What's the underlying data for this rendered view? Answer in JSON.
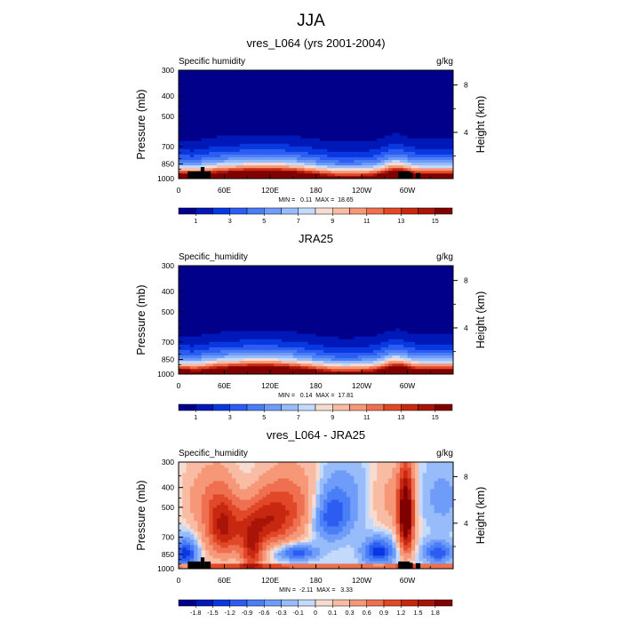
{
  "title": "JJA",
  "pressure_levels": [
    1000,
    850,
    700,
    500,
    400,
    300
  ],
  "chart_data": [
    {
      "type": "heatmap",
      "title": "vres_L064 (yrs 2001-2004)",
      "left_label": "Specific humidity",
      "right_label": "g/kg",
      "ylabel": "Pressure (mb)",
      "ylabel_right": "Height (km)",
      "xlabel": "",
      "x_ticks": [
        "0",
        "60E",
        "120E",
        "180",
        "120W",
        "60W"
      ],
      "x_tick_lon": [
        0,
        60,
        120,
        180,
        240,
        300
      ],
      "xlim": [
        0,
        360
      ],
      "y_ticks": [
        "300",
        "400",
        "500",
        "700",
        "850",
        "1000"
      ],
      "ylim": [
        1000,
        300
      ],
      "y_right_ticks": [
        "8",
        "4"
      ],
      "y_right_km": [
        8,
        4
      ],
      "stats_text": "MIN =   0.11  MAX =  18.65",
      "colorbar_labels": [
        "1",
        "3",
        "5",
        "7",
        "9",
        "11",
        "13",
        "15"
      ],
      "colorbar_levels": [
        0,
        1,
        2,
        3,
        4,
        5,
        6,
        7,
        8,
        9,
        10,
        11,
        12,
        13,
        14,
        15,
        16
      ],
      "field": "humidity",
      "value_range": [
        0.11,
        18.65
      ],
      "topography": [
        [
          12,
          29,
          922
        ],
        [
          29,
          34,
          880
        ],
        [
          34,
          42,
          922
        ],
        [
          288,
          303,
          922
        ],
        [
          303,
          307,
          935
        ],
        [
          311,
          317,
          940
        ]
      ]
    },
    {
      "type": "heatmap",
      "title": "JRA25",
      "left_label": "Specific_humidity",
      "right_label": "g/kg",
      "ylabel": "Pressure (mb)",
      "ylabel_right": "Height (km)",
      "xlabel": "",
      "x_ticks": [
        "0",
        "60E",
        "120E",
        "180",
        "120W",
        "60W"
      ],
      "x_tick_lon": [
        0,
        60,
        120,
        180,
        240,
        300
      ],
      "xlim": [
        0,
        360
      ],
      "y_ticks": [
        "300",
        "400",
        "500",
        "700",
        "850",
        "1000"
      ],
      "ylim": [
        1000,
        300
      ],
      "y_right_ticks": [
        "8",
        "4"
      ],
      "y_right_km": [
        8,
        4
      ],
      "stats_text": "MIN =   0.14  MAX =  17.81",
      "colorbar_labels": [
        "1",
        "3",
        "5",
        "7",
        "9",
        "11",
        "13",
        "15"
      ],
      "colorbar_levels": [
        0,
        1,
        2,
        3,
        4,
        5,
        6,
        7,
        8,
        9,
        10,
        11,
        12,
        13,
        14,
        15,
        16
      ],
      "field": "humidity",
      "value_range": [
        0.14,
        17.81
      ],
      "topography": []
    },
    {
      "type": "heatmap",
      "title": "vres_L064 - JRA25",
      "left_label": "Specific_humidity",
      "right_label": "g/kg",
      "ylabel": "Pressure (mb)",
      "ylabel_right": "Height (km)",
      "xlabel": "",
      "x_ticks": [
        "0",
        "60E",
        "120E",
        "180",
        "120W",
        "60W"
      ],
      "x_tick_lon": [
        0,
        60,
        120,
        180,
        240,
        300
      ],
      "xlim": [
        0,
        360
      ],
      "y_ticks": [
        "300",
        "400",
        "500",
        "700",
        "850",
        "1000"
      ],
      "ylim": [
        1000,
        300
      ],
      "y_right_ticks": [
        "8",
        "4"
      ],
      "y_right_km": [
        8,
        4
      ],
      "stats_text": "MIN =  -2.11  MAX =   3.33",
      "colorbar_labels": [
        "-1.8",
        "-1.5",
        "-1.2",
        "-0.9",
        "-0.6",
        "-0.3",
        "-0.1",
        "0",
        "0.1",
        "0.3",
        "0.6",
        "0.9",
        "1.2",
        "1.5",
        "1.8"
      ],
      "colorbar_levels": [
        -2.1,
        -1.8,
        -1.5,
        -1.2,
        -0.9,
        -0.6,
        -0.3,
        -0.1,
        0,
        0.1,
        0.3,
        0.6,
        0.9,
        1.2,
        1.5,
        1.8,
        2.1
      ],
      "field": "difference",
      "value_range": [
        -2.11,
        3.33
      ],
      "topography": [
        [
          12,
          29,
          922
        ],
        [
          29,
          34,
          880
        ],
        [
          34,
          42,
          922
        ],
        [
          288,
          303,
          922
        ],
        [
          303,
          307,
          935
        ],
        [
          311,
          317,
          940
        ]
      ]
    }
  ],
  "colors": {
    "palette": [
      "#00008b",
      "#0018b8",
      "#0838e0",
      "#2c5cf2",
      "#4a7ef6",
      "#6e9cf8",
      "#98bcfa",
      "#c4dafc",
      "#f6dcd0",
      "#f8bca4",
      "#f69878",
      "#ee7050",
      "#e04828",
      "#c82810",
      "#a81408",
      "#800000"
    ],
    "topography": "#000000",
    "frame": "#000000"
  }
}
